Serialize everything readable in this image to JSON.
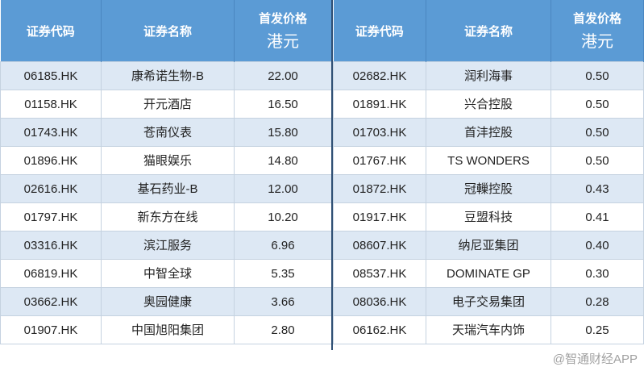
{
  "headers": {
    "code": "证券代码",
    "name": "证券名称",
    "price_l1": "首发价格",
    "price_l2": "港元"
  },
  "left": [
    {
      "code": "06185.HK",
      "name": "康希诺生物-B",
      "price": "22.00"
    },
    {
      "code": "01158.HK",
      "name": "开元酒店",
      "price": "16.50"
    },
    {
      "code": "01743.HK",
      "name": "苍南仪表",
      "price": "15.80"
    },
    {
      "code": "01896.HK",
      "name": "猫眼娱乐",
      "price": "14.80"
    },
    {
      "code": "02616.HK",
      "name": "基石药业-B",
      "price": "12.00"
    },
    {
      "code": "01797.HK",
      "name": "新东方在线",
      "price": "10.20"
    },
    {
      "code": "03316.HK",
      "name": "滨江服务",
      "price": "6.96"
    },
    {
      "code": "06819.HK",
      "name": "中智全球",
      "price": "5.35"
    },
    {
      "code": "03662.HK",
      "name": "奥园健康",
      "price": "3.66"
    },
    {
      "code": "01907.HK",
      "name": "中国旭阳集团",
      "price": "2.80"
    }
  ],
  "right": [
    {
      "code": "02682.HK",
      "name": "润利海事",
      "price": "0.50"
    },
    {
      "code": "01891.HK",
      "name": "兴合控股",
      "price": "0.50"
    },
    {
      "code": "01703.HK",
      "name": "首沣控股",
      "price": "0.50"
    },
    {
      "code": "01767.HK",
      "name": "TS WONDERS",
      "price": "0.50"
    },
    {
      "code": "01872.HK",
      "name": "冠轈控股",
      "price": "0.43"
    },
    {
      "code": "01917.HK",
      "name": "豆盟科技",
      "price": "0.41"
    },
    {
      "code": "08607.HK",
      "name": "纳尼亚集团",
      "price": "0.40"
    },
    {
      "code": "08537.HK",
      "name": "DOMINATE GP",
      "price": "0.30"
    },
    {
      "code": "08036.HK",
      "name": "电子交易集团",
      "price": "0.28"
    },
    {
      "code": "06162.HK",
      "name": "天瑞汽车内饰",
      "price": "0.25"
    }
  ],
  "watermark": "@智通财经APP"
}
